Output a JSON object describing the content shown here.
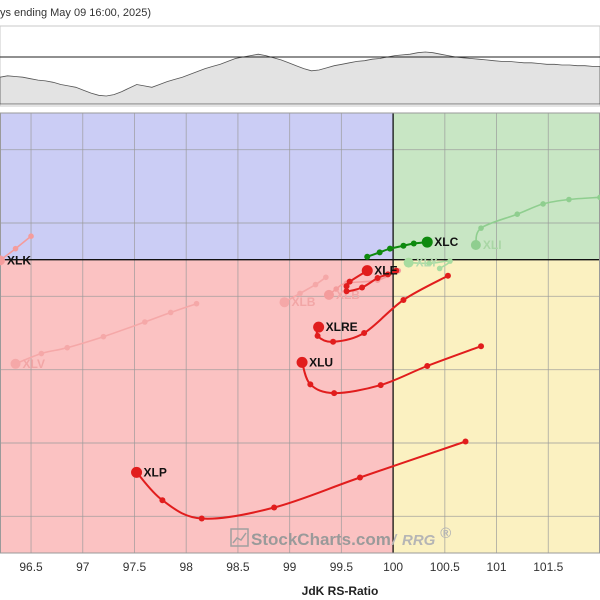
{
  "header": {
    "caption": "ys ending May 09 16:00, 2025)"
  },
  "benchmark_strip": {
    "values": [
      40,
      42,
      41,
      40,
      38,
      36,
      35,
      33,
      30,
      28,
      26,
      22,
      18,
      15,
      14,
      16,
      20,
      25,
      30,
      28,
      26,
      30,
      34,
      37,
      40,
      44,
      48,
      52,
      55,
      58,
      62,
      66,
      68,
      70,
      72,
      70,
      67,
      64,
      60,
      56,
      52,
      49,
      50,
      53,
      56,
      58,
      60,
      62,
      63,
      65,
      66,
      68,
      70,
      71,
      72,
      74,
      75,
      74,
      72,
      70,
      68,
      67,
      66,
      65,
      64,
      63,
      62,
      62,
      61,
      60,
      60,
      59,
      58,
      58,
      57,
      57,
      56,
      56,
      55,
      55
    ]
  },
  "watermark": {
    "brand": "StockCharts.com",
    "sep": "/",
    "product": "RRG",
    "reg": "®"
  },
  "quadrant_colors": {
    "leading": "#c8e6c4",
    "weakening": "#fbf1c1",
    "lagging": "#fbc2c2",
    "improving": "#cbcdf5",
    "gridline": "#9a9a9a"
  },
  "chart_data": {
    "type": "scatter",
    "title": "",
    "xlabel": "JdK RS-Ratio",
    "ylabel": "",
    "xlim": [
      96.2,
      102.0
    ],
    "ylim": [
      96.0,
      102.0
    ],
    "center": [
      100,
      100
    ],
    "x_ticks": [
      96.5,
      97,
      97.5,
      98,
      98.5,
      99,
      99.5,
      100,
      100.5,
      101,
      101.5
    ],
    "x_tick_labels": [
      "96.5",
      "97",
      "97.5",
      "98",
      "98.5",
      "99",
      "99.5",
      "100",
      "100.5",
      "101",
      "101.5"
    ],
    "y_grid": [
      96.5,
      97.5,
      98.5,
      99.5,
      100.5,
      101.5
    ],
    "series": [
      {
        "name": "XLC",
        "color": "#0e8a0e",
        "faded": false,
        "points": [
          [
            99.75,
            100.04
          ],
          [
            99.87,
            100.1
          ],
          [
            99.97,
            100.15
          ],
          [
            100.1,
            100.19
          ],
          [
            100.2,
            100.22
          ],
          [
            100.33,
            100.24
          ]
        ]
      },
      {
        "name": "XLE",
        "color": "#e11d1d",
        "faded": false,
        "points": [
          [
            100.03,
            99.85
          ],
          [
            99.95,
            99.8
          ],
          [
            99.85,
            99.75
          ],
          [
            99.7,
            99.62
          ],
          [
            99.55,
            99.57
          ],
          [
            99.55,
            99.64
          ],
          [
            99.58,
            99.7
          ],
          [
            99.75,
            99.85
          ]
        ]
      },
      {
        "name": "XLRE",
        "color": "#e11d1d",
        "faded": false,
        "points": [
          [
            100.53,
            99.78
          ],
          [
            100.1,
            99.45
          ],
          [
            99.72,
            99.0
          ],
          [
            99.42,
            98.88
          ],
          [
            99.27,
            98.96
          ],
          [
            99.28,
            99.08
          ]
        ]
      },
      {
        "name": "XLU",
        "color": "#e11d1d",
        "faded": false,
        "points": [
          [
            100.85,
            98.82
          ],
          [
            100.33,
            98.55
          ],
          [
            99.88,
            98.29
          ],
          [
            99.43,
            98.18
          ],
          [
            99.2,
            98.3
          ],
          [
            99.12,
            98.6
          ]
        ]
      },
      {
        "name": "XLP",
        "color": "#e11d1d",
        "faded": false,
        "points": [
          [
            100.7,
            97.52
          ],
          [
            99.68,
            97.03
          ],
          [
            98.85,
            96.62
          ],
          [
            98.15,
            96.47
          ],
          [
            97.77,
            96.72
          ],
          [
            97.52,
            97.1
          ]
        ]
      },
      {
        "name": "XLI",
        "color": "#8fce8f",
        "faded": true,
        "points": [
          [
            102.0,
            100.85
          ],
          [
            101.7,
            100.82
          ],
          [
            101.45,
            100.76
          ],
          [
            101.2,
            100.62
          ],
          [
            100.85,
            100.43
          ],
          [
            100.8,
            100.2
          ]
        ]
      },
      {
        "name": "XLY",
        "color": "#a8dca0",
        "faded": true,
        "points": [
          [
            100.45,
            99.88
          ],
          [
            100.55,
            99.98
          ],
          [
            100.35,
            99.95
          ],
          [
            100.15,
            99.96
          ]
        ]
      },
      {
        "name": "XLB",
        "color": "#f49c9c",
        "faded": true,
        "points": [
          [
            100.05,
            99.85
          ],
          [
            99.85,
            99.72
          ],
          [
            99.55,
            99.68
          ],
          [
            99.45,
            99.6
          ],
          [
            99.38,
            99.52
          ]
        ]
      },
      {
        "name": "XLK",
        "color": "#f49c9c",
        "faded": true,
        "points": [
          [
            96.5,
            100.32
          ],
          [
            96.35,
            100.15
          ],
          [
            96.2,
            99.99
          ]
        ]
      },
      {
        "name": "XLV",
        "color": "#f5a8a8",
        "faded": true,
        "points": [
          [
            98.1,
            99.4
          ],
          [
            97.85,
            99.28
          ],
          [
            97.6,
            99.15
          ],
          [
            97.2,
            98.95
          ],
          [
            96.85,
            98.8
          ],
          [
            96.6,
            98.72
          ],
          [
            96.35,
            98.58
          ]
        ]
      },
      {
        "name": "XLB",
        "color": "#f5a8a8",
        "faded": true,
        "points": [
          [
            99.35,
            99.76
          ],
          [
            99.25,
            99.66
          ],
          [
            99.1,
            99.54
          ],
          [
            98.95,
            99.42
          ]
        ]
      }
    ],
    "labels": [
      {
        "name": "XLC",
        "color": "#111111"
      },
      {
        "name": "XLE",
        "color": "#111111"
      },
      {
        "name": "XLRE",
        "color": "#111111"
      },
      {
        "name": "XLU",
        "color": "#111111"
      },
      {
        "name": "XLP",
        "color": "#111111"
      },
      {
        "name": "XLI",
        "color": "#a9d6a5"
      },
      {
        "name": "XLY",
        "color": "#b3dbae"
      },
      {
        "name": "XLB",
        "color": "#f2a6a6"
      },
      {
        "name": "XLV",
        "color": "#f2a6a6"
      }
    ]
  }
}
